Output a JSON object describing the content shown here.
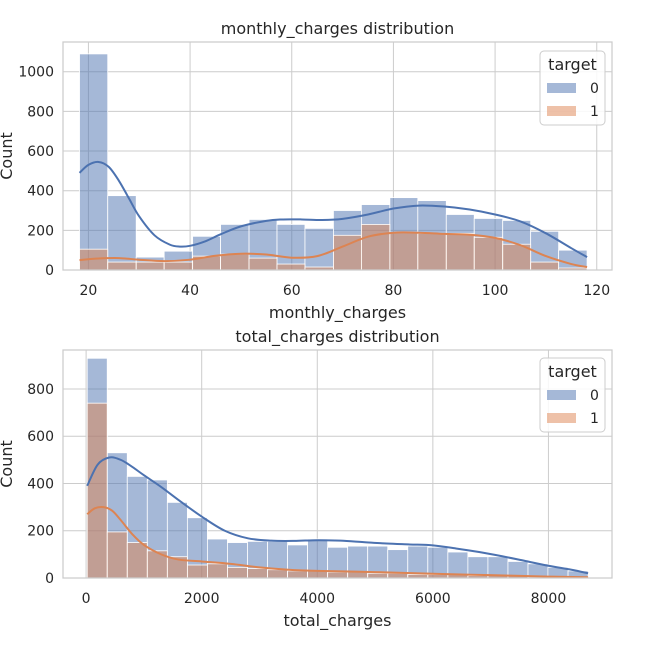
{
  "colors": {
    "series0": "#4c72b0",
    "series1": "#dd8452",
    "grid": "#cccccc",
    "axes_edge": "#cccccc",
    "bar_edge": "#ffffff",
    "text": "#262626"
  },
  "chart_data": [
    {
      "type": "histogram",
      "title": "monthly_charges distribution",
      "xlabel": "monthly_charges",
      "ylabel": "Count",
      "xlim": [
        15,
        123
      ],
      "ylim": [
        0,
        1150
      ],
      "xticks": [
        20,
        40,
        60,
        80,
        100,
        120
      ],
      "yticks": [
        0,
        200,
        400,
        600,
        800,
        1000
      ],
      "bin_edges": [
        18.25,
        23.8,
        29.4,
        34.9,
        40.5,
        46.0,
        51.6,
        57.1,
        62.6,
        68.2,
        73.7,
        79.3,
        84.8,
        90.4,
        95.9,
        101.5,
        107.0,
        112.5,
        118.1
      ],
      "grid": true,
      "legend": {
        "title": "target",
        "placement": "top-right",
        "entries": [
          "0",
          "1"
        ]
      },
      "series": [
        {
          "name": "0",
          "values": [
            1090,
            375,
            65,
            95,
            170,
            230,
            255,
            230,
            210,
            300,
            330,
            365,
            350,
            280,
            260,
            250,
            195,
            100
          ]
        },
        {
          "name": "1",
          "values": [
            105,
            40,
            40,
            40,
            70,
            80,
            60,
            30,
            15,
            175,
            230,
            190,
            185,
            185,
            165,
            130,
            40,
            10
          ]
        }
      ],
      "kde": [
        {
          "name": "0",
          "x": [
            18.25,
            20,
            22,
            24,
            26,
            28,
            30,
            33,
            36,
            38,
            40,
            43,
            46,
            50,
            55,
            58,
            62,
            66,
            70,
            75,
            80,
            85,
            90,
            95,
            100,
            105,
            110,
            115,
            118.1
          ],
          "y": [
            490,
            530,
            545,
            520,
            450,
            360,
            270,
            175,
            128,
            118,
            122,
            145,
            180,
            220,
            248,
            255,
            255,
            252,
            258,
            280,
            310,
            325,
            320,
            305,
            280,
            245,
            185,
            110,
            65
          ]
        },
        {
          "name": "1",
          "x": [
            18.25,
            22,
            26,
            30,
            35,
            40,
            45,
            50,
            55,
            60,
            65,
            70,
            75,
            80,
            85,
            90,
            95,
            100,
            105,
            110,
            115,
            118.1
          ],
          "y": [
            50,
            58,
            60,
            52,
            45,
            52,
            72,
            82,
            78,
            62,
            70,
            118,
            168,
            188,
            188,
            182,
            178,
            162,
            125,
            70,
            30,
            15
          ]
        }
      ]
    },
    {
      "type": "histogram",
      "title": "total_charges distribution",
      "xlabel": "total_charges",
      "ylabel": "Count",
      "xlim": [
        -400,
        9100
      ],
      "ylim": [
        0,
        965
      ],
      "xticks": [
        0,
        2000,
        4000,
        6000,
        8000
      ],
      "yticks": [
        0,
        200,
        400,
        600,
        800
      ],
      "bin_edges": [
        18.8,
        365.5,
        712.2,
        1058.9,
        1405.6,
        1752.3,
        2099.0,
        2445.7,
        2792.4,
        3139.1,
        3485.8,
        3832.5,
        4179.2,
        4525.9,
        4872.6,
        5219.3,
        5566.0,
        5912.7,
        6259.4,
        6606.1,
        6952.8,
        7299.5,
        7646.2,
        7992.9,
        8339.6,
        8686.3
      ],
      "grid": true,
      "legend": {
        "title": "target",
        "placement": "top-right",
        "entries": [
          "0",
          "1"
        ]
      },
      "series": [
        {
          "name": "0",
          "values": [
            930,
            530,
            430,
            415,
            320,
            255,
            165,
            150,
            155,
            155,
            140,
            165,
            130,
            135,
            135,
            120,
            135,
            130,
            110,
            90,
            90,
            70,
            60,
            45,
            30
          ]
        },
        {
          "name": "1",
          "values": [
            740,
            195,
            150,
            115,
            90,
            55,
            60,
            45,
            40,
            35,
            30,
            30,
            25,
            25,
            20,
            20,
            15,
            15,
            15,
            10,
            10,
            8,
            5,
            5,
            3
          ]
        }
      ],
      "kde": [
        {
          "name": "0",
          "x": [
            18.8,
            200,
            400,
            600,
            800,
            1000,
            1300,
            1600,
            2000,
            2400,
            2800,
            3200,
            3600,
            4000,
            4400,
            4800,
            5200,
            5600,
            6000,
            6400,
            6800,
            7200,
            7600,
            8000,
            8400,
            8686.3
          ],
          "y": [
            390,
            480,
            510,
            500,
            470,
            435,
            385,
            330,
            260,
            200,
            168,
            158,
            157,
            160,
            158,
            152,
            146,
            142,
            138,
            125,
            110,
            92,
            72,
            52,
            35,
            20
          ]
        },
        {
          "name": "1",
          "x": [
            18.8,
            150,
            300,
            450,
            600,
            800,
            1000,
            1300,
            1600,
            2000,
            2500,
            3000,
            3500,
            4000,
            5000,
            6000,
            7000,
            8000,
            8686.3
          ],
          "y": [
            270,
            295,
            300,
            285,
            245,
            185,
            140,
            100,
            78,
            70,
            60,
            45,
            35,
            30,
            25,
            18,
            12,
            6,
            3
          ]
        }
      ]
    }
  ]
}
